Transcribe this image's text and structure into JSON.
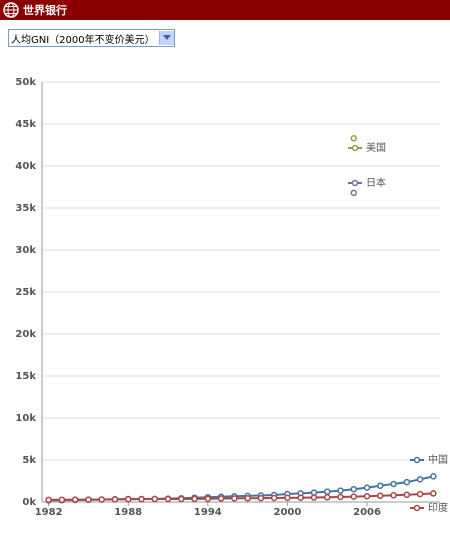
{
  "header": {
    "title": "世界银行"
  },
  "selector": {
    "label": "人均GNI（2000年不变价美元）"
  },
  "chart_data": {
    "type": "line",
    "x": [
      1982,
      1983,
      1984,
      1985,
      1986,
      1987,
      1988,
      1989,
      1990,
      1991,
      1992,
      1993,
      1994,
      1995,
      1996,
      1997,
      1998,
      1999,
      2000,
      2001,
      2002,
      2003,
      2004,
      2005,
      2006,
      2007,
      2008,
      2009,
      2010,
      2011
    ],
    "series": [
      {
        "name": "美国",
        "color": "#89a54e",
        "values": [
          null,
          null,
          null,
          null,
          null,
          null,
          null,
          null,
          null,
          null,
          null,
          null,
          null,
          null,
          null,
          null,
          null,
          null,
          null,
          null,
          null,
          null,
          null,
          43.3,
          null,
          null,
          null,
          null,
          null,
          null
        ]
      },
      {
        "name": "日本",
        "color": "#80699b",
        "values": [
          null,
          null,
          null,
          null,
          null,
          null,
          null,
          null,
          null,
          null,
          null,
          null,
          null,
          null,
          null,
          null,
          null,
          null,
          null,
          null,
          null,
          null,
          null,
          36.8,
          null,
          null,
          null,
          null,
          null,
          null
        ]
      },
      {
        "name": "中国",
        "color": "#4572a7",
        "values": [
          0.19,
          0.21,
          0.24,
          0.27,
          0.29,
          0.32,
          0.35,
          0.36,
          0.37,
          0.4,
          0.45,
          0.51,
          0.57,
          0.62,
          0.68,
          0.73,
          0.78,
          0.84,
          0.95,
          1.03,
          1.12,
          1.23,
          1.36,
          1.52,
          1.71,
          1.94,
          2.15,
          2.37,
          2.7,
          3.05
        ]
      },
      {
        "name": "印度",
        "color": "#aa4643",
        "values": [
          0.26,
          0.27,
          0.28,
          0.29,
          0.3,
          0.31,
          0.33,
          0.34,
          0.35,
          0.35,
          0.36,
          0.37,
          0.39,
          0.41,
          0.43,
          0.44,
          0.46,
          0.48,
          0.49,
          0.51,
          0.53,
          0.56,
          0.6,
          0.64,
          0.69,
          0.74,
          0.8,
          0.86,
          0.94,
          1.02
        ]
      }
    ],
    "xlim": [
      1981.5,
      2011.5
    ],
    "xticks": [
      1982,
      1988,
      1994,
      2000,
      2006
    ],
    "ylim": [
      0,
      50
    ],
    "yticks": [
      {
        "value": 0,
        "label": "0k"
      },
      {
        "value": 5,
        "label": "5k"
      },
      {
        "value": 10,
        "label": "10k"
      },
      {
        "value": 15,
        "label": "15k"
      },
      {
        "value": 20,
        "label": "20k"
      },
      {
        "value": 25,
        "label": "25k"
      },
      {
        "value": 30,
        "label": "30k"
      },
      {
        "value": 35,
        "label": "35k"
      },
      {
        "value": 40,
        "label": "40k"
      },
      {
        "value": 45,
        "label": "45k"
      },
      {
        "value": 50,
        "label": "50k"
      }
    ],
    "grid": true
  }
}
